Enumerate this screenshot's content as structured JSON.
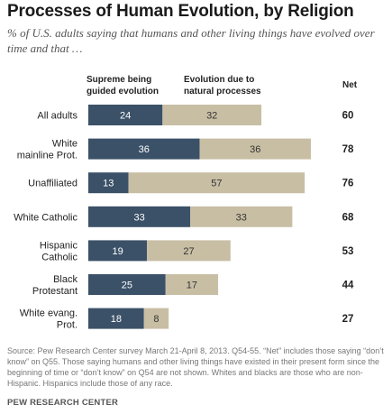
{
  "title": "Processes of Human Evolution, by Religion",
  "subtitle": "% of U.S. adults saying that humans and other living things have evolved over time and that …",
  "column_headers": {
    "supreme": "Supreme being guided evolution",
    "natural": "Evolution due to natural processes",
    "net": "Net"
  },
  "colors": {
    "supreme": "#3b5168",
    "natural": "#c8bea4",
    "supreme_text": "#ffffff",
    "natural_text": "#333333"
  },
  "chart_data": {
    "type": "bar",
    "orientation": "horizontal",
    "stacked": true,
    "categories": [
      [
        "All adults"
      ],
      [
        "White",
        "mainline Prot."
      ],
      [
        "Unaffiliated"
      ],
      [
        "White Catholic"
      ],
      [
        "Hispanic",
        "Catholic"
      ],
      [
        "Black",
        "Protestant"
      ],
      [
        "White evang.",
        "Prot."
      ]
    ],
    "series": [
      {
        "name": "Supreme being guided evolution",
        "values": [
          24,
          36,
          13,
          33,
          19,
          25,
          18
        ]
      },
      {
        "name": "Evolution due to natural processes",
        "values": [
          32,
          36,
          57,
          33,
          27,
          17,
          8
        ]
      }
    ],
    "net": [
      60,
      78,
      76,
      68,
      53,
      44,
      27
    ]
  },
  "footnote": "Source: Pew Research Center survey March 21-April 8, 2013. Q54-55. “Net” includes those saying “don’t know” on Q55. Those saying humans and other living things have existed in their present form since the beginning of time or “don’t know” on Q54 are not shown. Whites and blacks are those who are non-Hispanic. Hispanics include those of any race.",
  "brand": "PEW RESEARCH CENTER"
}
